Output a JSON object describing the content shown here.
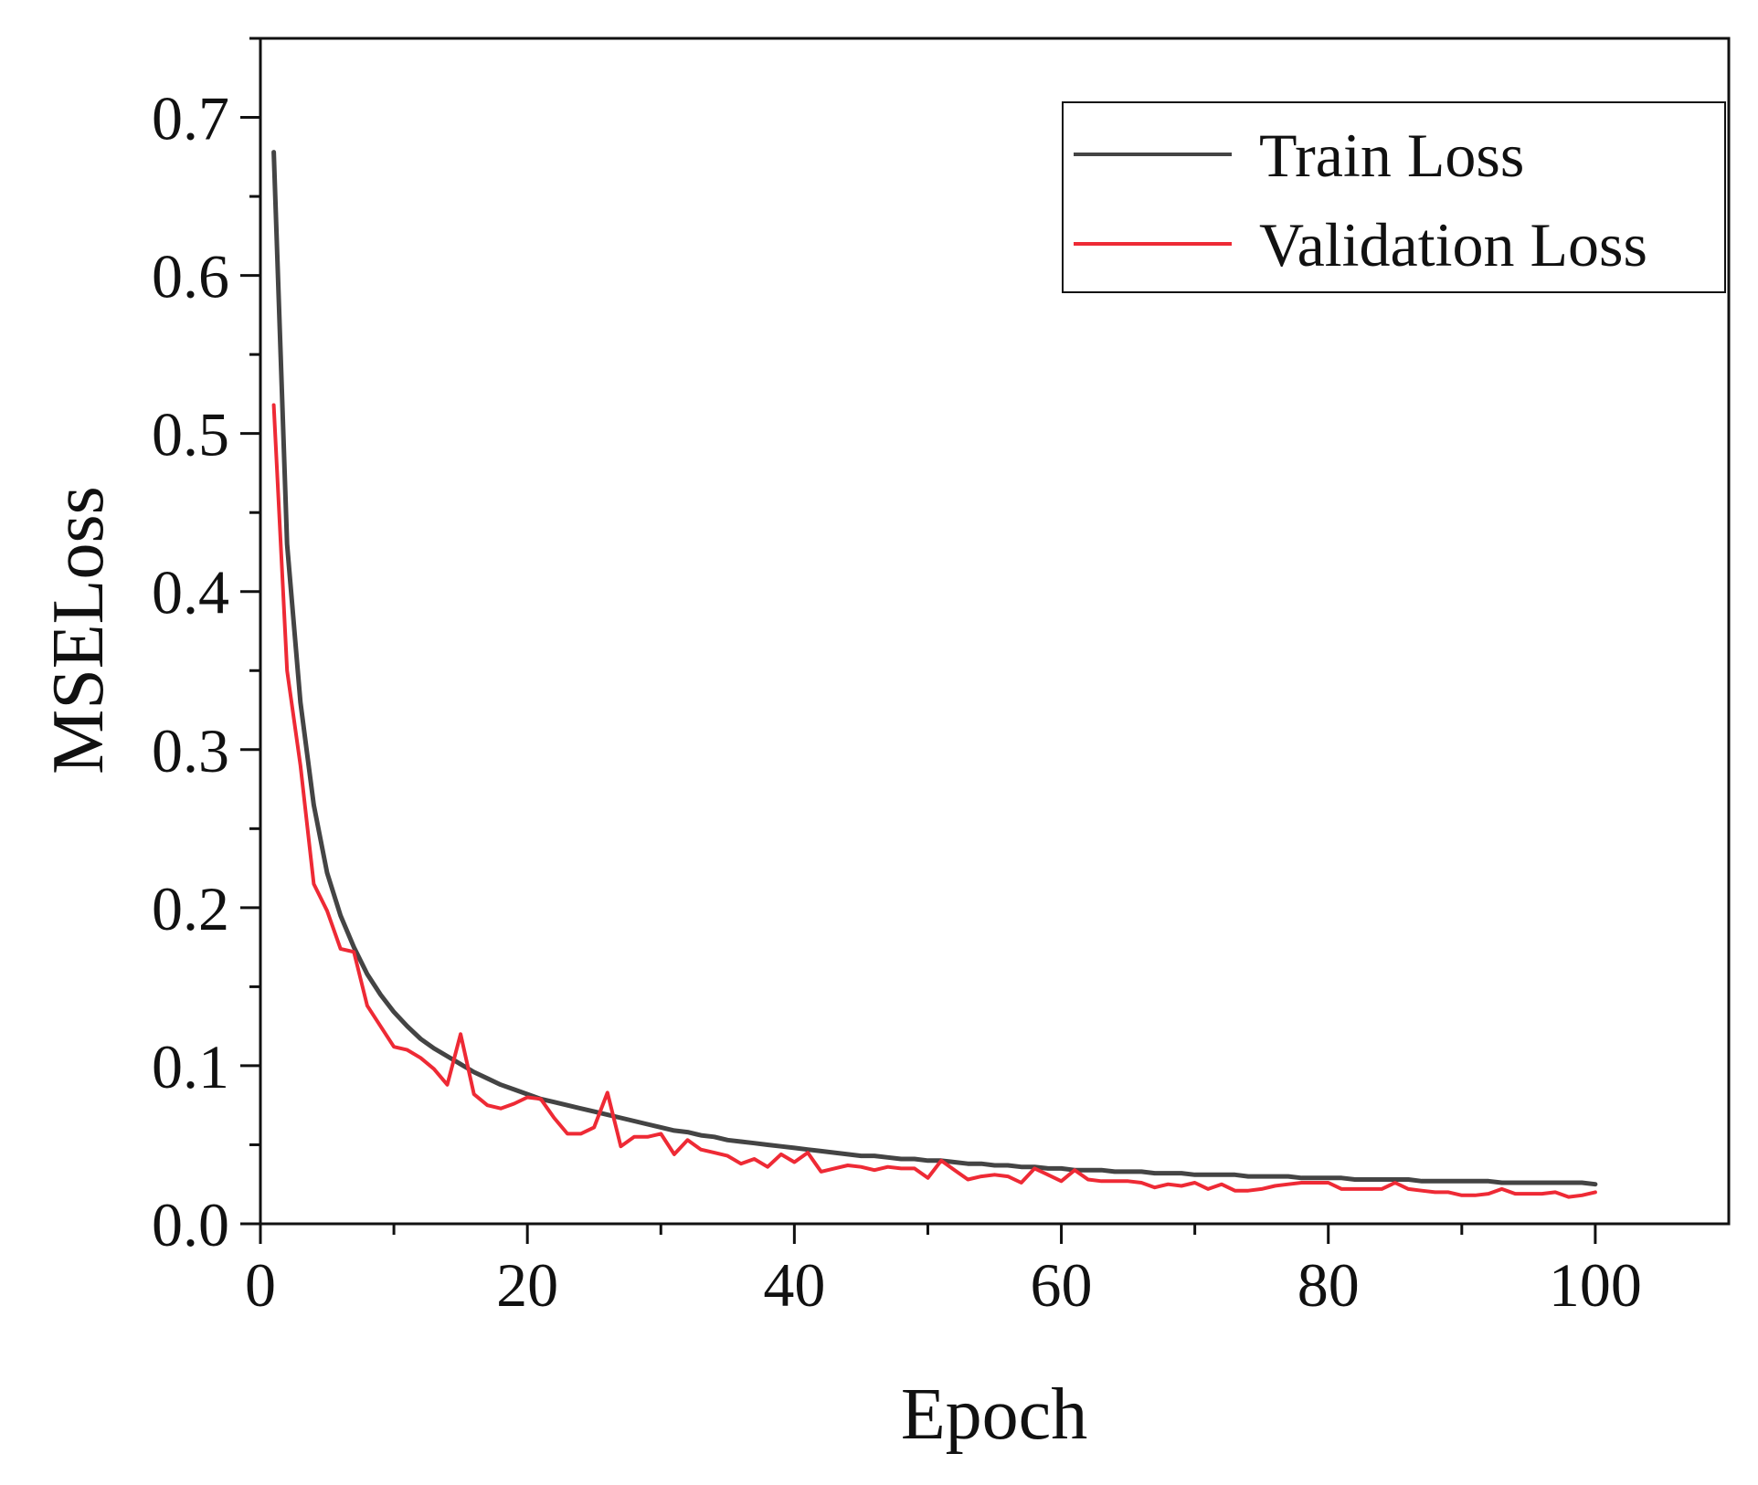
{
  "chart_data": {
    "type": "line",
    "title": "",
    "xlabel": "Epoch",
    "ylabel": "MSELoss",
    "xlim": [
      0,
      110
    ],
    "ylim": [
      0,
      0.75
    ],
    "xticks": [
      0,
      20,
      40,
      60,
      80,
      100
    ],
    "xtick_labels": [
      "0",
      "20",
      "40",
      "60",
      "80",
      "100"
    ],
    "yticks": [
      0.0,
      0.1,
      0.2,
      0.3,
      0.4,
      0.5,
      0.6,
      0.7
    ],
    "ytick_labels": [
      "0.0",
      "0.1",
      "0.2",
      "0.3",
      "0.4",
      "0.5",
      "0.6",
      "0.7"
    ],
    "grid": false,
    "legend_position": "top-right",
    "series": [
      {
        "name": "Train Loss",
        "color": "#444444",
        "x": [
          1,
          2,
          3,
          4,
          5,
          6,
          7,
          8,
          9,
          10,
          11,
          12,
          13,
          14,
          15,
          16,
          17,
          18,
          19,
          20,
          21,
          22,
          23,
          24,
          25,
          26,
          27,
          28,
          29,
          30,
          31,
          32,
          33,
          34,
          35,
          36,
          37,
          38,
          39,
          40,
          41,
          42,
          43,
          44,
          45,
          46,
          47,
          48,
          49,
          50,
          51,
          52,
          53,
          54,
          55,
          56,
          57,
          58,
          59,
          60,
          61,
          62,
          63,
          64,
          65,
          66,
          67,
          68,
          69,
          70,
          71,
          72,
          73,
          74,
          75,
          76,
          77,
          78,
          79,
          80,
          81,
          82,
          83,
          84,
          85,
          86,
          87,
          88,
          89,
          90,
          91,
          92,
          93,
          94,
          95,
          96,
          97,
          98,
          99,
          100
        ],
        "values": [
          0.678,
          0.43,
          0.33,
          0.265,
          0.222,
          0.195,
          0.175,
          0.158,
          0.145,
          0.134,
          0.125,
          0.117,
          0.111,
          0.106,
          0.101,
          0.096,
          0.092,
          0.088,
          0.085,
          0.082,
          0.079,
          0.077,
          0.075,
          0.073,
          0.071,
          0.069,
          0.067,
          0.065,
          0.063,
          0.061,
          0.059,
          0.058,
          0.056,
          0.055,
          0.053,
          0.052,
          0.051,
          0.05,
          0.049,
          0.048,
          0.047,
          0.046,
          0.045,
          0.044,
          0.043,
          0.043,
          0.042,
          0.041,
          0.041,
          0.04,
          0.04,
          0.039,
          0.038,
          0.038,
          0.037,
          0.037,
          0.036,
          0.036,
          0.035,
          0.035,
          0.034,
          0.034,
          0.034,
          0.033,
          0.033,
          0.033,
          0.032,
          0.032,
          0.032,
          0.031,
          0.031,
          0.031,
          0.031,
          0.03,
          0.03,
          0.03,
          0.03,
          0.029,
          0.029,
          0.029,
          0.029,
          0.028,
          0.028,
          0.028,
          0.028,
          0.028,
          0.027,
          0.027,
          0.027,
          0.027,
          0.027,
          0.027,
          0.026,
          0.026,
          0.026,
          0.026,
          0.026,
          0.026,
          0.026,
          0.025
        ]
      },
      {
        "name": "Validation Loss",
        "color": "#ee2a35",
        "x": [
          1,
          2,
          3,
          4,
          5,
          6,
          7,
          8,
          9,
          10,
          11,
          12,
          13,
          14,
          15,
          16,
          17,
          18,
          19,
          20,
          21,
          22,
          23,
          24,
          25,
          26,
          27,
          28,
          29,
          30,
          31,
          32,
          33,
          34,
          35,
          36,
          37,
          38,
          39,
          40,
          41,
          42,
          43,
          44,
          45,
          46,
          47,
          48,
          49,
          50,
          51,
          52,
          53,
          54,
          55,
          56,
          57,
          58,
          59,
          60,
          61,
          62,
          63,
          64,
          65,
          66,
          67,
          68,
          69,
          70,
          71,
          72,
          73,
          74,
          75,
          76,
          77,
          78,
          79,
          80,
          81,
          82,
          83,
          84,
          85,
          86,
          87,
          88,
          89,
          90,
          91,
          92,
          93,
          94,
          95,
          96,
          97,
          98,
          99,
          100
        ],
        "values": [
          0.518,
          0.35,
          0.29,
          0.215,
          0.198,
          0.174,
          0.172,
          0.138,
          0.125,
          0.112,
          0.11,
          0.105,
          0.098,
          0.088,
          0.12,
          0.082,
          0.075,
          0.073,
          0.076,
          0.08,
          0.079,
          0.067,
          0.057,
          0.057,
          0.061,
          0.083,
          0.049,
          0.055,
          0.055,
          0.057,
          0.044,
          0.053,
          0.047,
          0.045,
          0.043,
          0.038,
          0.041,
          0.036,
          0.044,
          0.039,
          0.045,
          0.033,
          0.035,
          0.037,
          0.036,
          0.034,
          0.036,
          0.035,
          0.035,
          0.029,
          0.04,
          0.034,
          0.028,
          0.03,
          0.031,
          0.03,
          0.026,
          0.035,
          0.031,
          0.027,
          0.034,
          0.028,
          0.027,
          0.027,
          0.027,
          0.026,
          0.023,
          0.025,
          0.024,
          0.026,
          0.022,
          0.025,
          0.021,
          0.021,
          0.022,
          0.024,
          0.025,
          0.026,
          0.026,
          0.026,
          0.022,
          0.022,
          0.022,
          0.022,
          0.026,
          0.022,
          0.021,
          0.02,
          0.02,
          0.018,
          0.018,
          0.019,
          0.022,
          0.019,
          0.019,
          0.019,
          0.02,
          0.017,
          0.018,
          0.02
        ]
      }
    ]
  }
}
